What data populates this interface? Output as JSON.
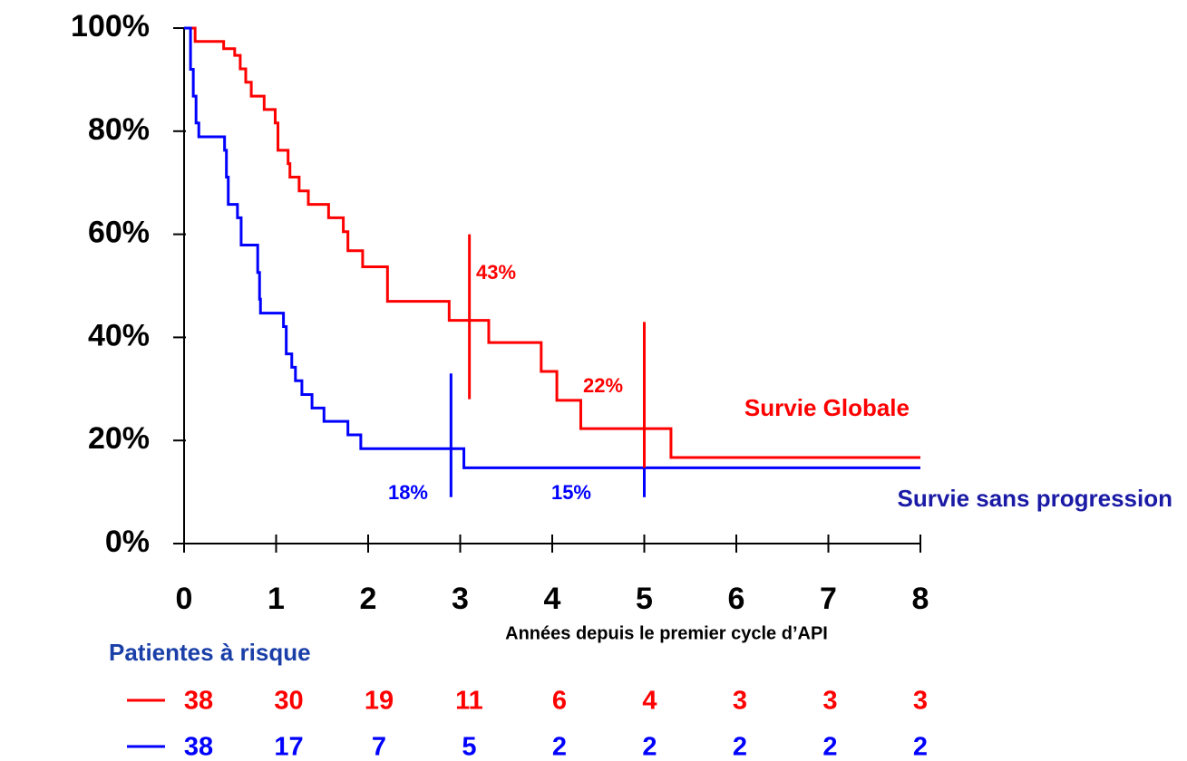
{
  "chart_data": {
    "type": "step",
    "x_label": "Années depuis le premier cycle d’API",
    "xlim": [
      0,
      8
    ],
    "xticks": [
      0,
      1,
      2,
      3,
      4,
      5,
      6,
      7,
      8
    ],
    "ylim": [
      0,
      100
    ],
    "yticks": [
      {
        "value": 0,
        "label": "0%"
      },
      {
        "value": 20,
        "label": "20%"
      },
      {
        "value": 40,
        "label": "40%"
      },
      {
        "value": 60,
        "label": "60%"
      },
      {
        "value": 80,
        "label": "80%"
      },
      {
        "value": 100,
        "label": "100%"
      }
    ],
    "series": [
      {
        "name": "Survie Globale",
        "color": "#ff0000",
        "label_color": "#ff0000",
        "x": [
          0,
          0.12,
          0.43,
          0.55,
          0.61,
          0.67,
          0.73,
          0.87,
          0.99,
          1.02,
          1.13,
          1.15,
          1.25,
          1.35,
          1.57,
          1.73,
          1.78,
          1.94,
          2.21,
          2.88,
          3.31,
          3.88,
          4.05,
          4.31,
          5.29,
          8
        ],
        "values": [
          100,
          97.4,
          96,
          94.7,
          92.1,
          89.5,
          86.8,
          84.2,
          81.6,
          76.3,
          73.7,
          71.1,
          68.4,
          65.8,
          63.2,
          60.5,
          56.8,
          53.7,
          47,
          43.3,
          39,
          33.4,
          27.8,
          22.3,
          16.7,
          16.7
        ],
        "at_risk": [
          38,
          30,
          19,
          11,
          6,
          4,
          3,
          3,
          3
        ]
      },
      {
        "name": "Survie sans progression",
        "color": "#0000ff",
        "label_color": "#1a1aa6",
        "x": [
          0,
          0.07,
          0.1,
          0.13,
          0.16,
          0.44,
          0.46,
          0.48,
          0.58,
          0.62,
          0.8,
          0.82,
          0.83,
          1.08,
          1.11,
          1.17,
          1.21,
          1.28,
          1.39,
          1.52,
          1.78,
          1.92,
          3.04,
          8
        ],
        "values": [
          100,
          92,
          86.8,
          81.6,
          78.9,
          76.3,
          71.1,
          65.8,
          63.2,
          57.9,
          52.6,
          47.4,
          44.7,
          42.1,
          36.8,
          34.2,
          31.6,
          28.9,
          26.3,
          23.7,
          21.1,
          18.4,
          14.7,
          14.7
        ],
        "at_risk": [
          38,
          17,
          7,
          5,
          2,
          2,
          2,
          2,
          2
        ]
      }
    ],
    "annotations": [
      {
        "series": 0,
        "x": 3.1,
        "y_range": [
          28,
          60
        ],
        "label": "43%"
      },
      {
        "series": 0,
        "x": 5,
        "y_range": [
          10,
          43
        ],
        "label": "22%"
      },
      {
        "series": 1,
        "x": 2.9,
        "y_range": [
          9,
          33
        ],
        "label": "18%"
      },
      {
        "series": 1,
        "x": 5,
        "y_range": [
          9,
          14.7
        ],
        "label": "15%"
      }
    ],
    "at_risk_title": "Patientes à risque"
  }
}
